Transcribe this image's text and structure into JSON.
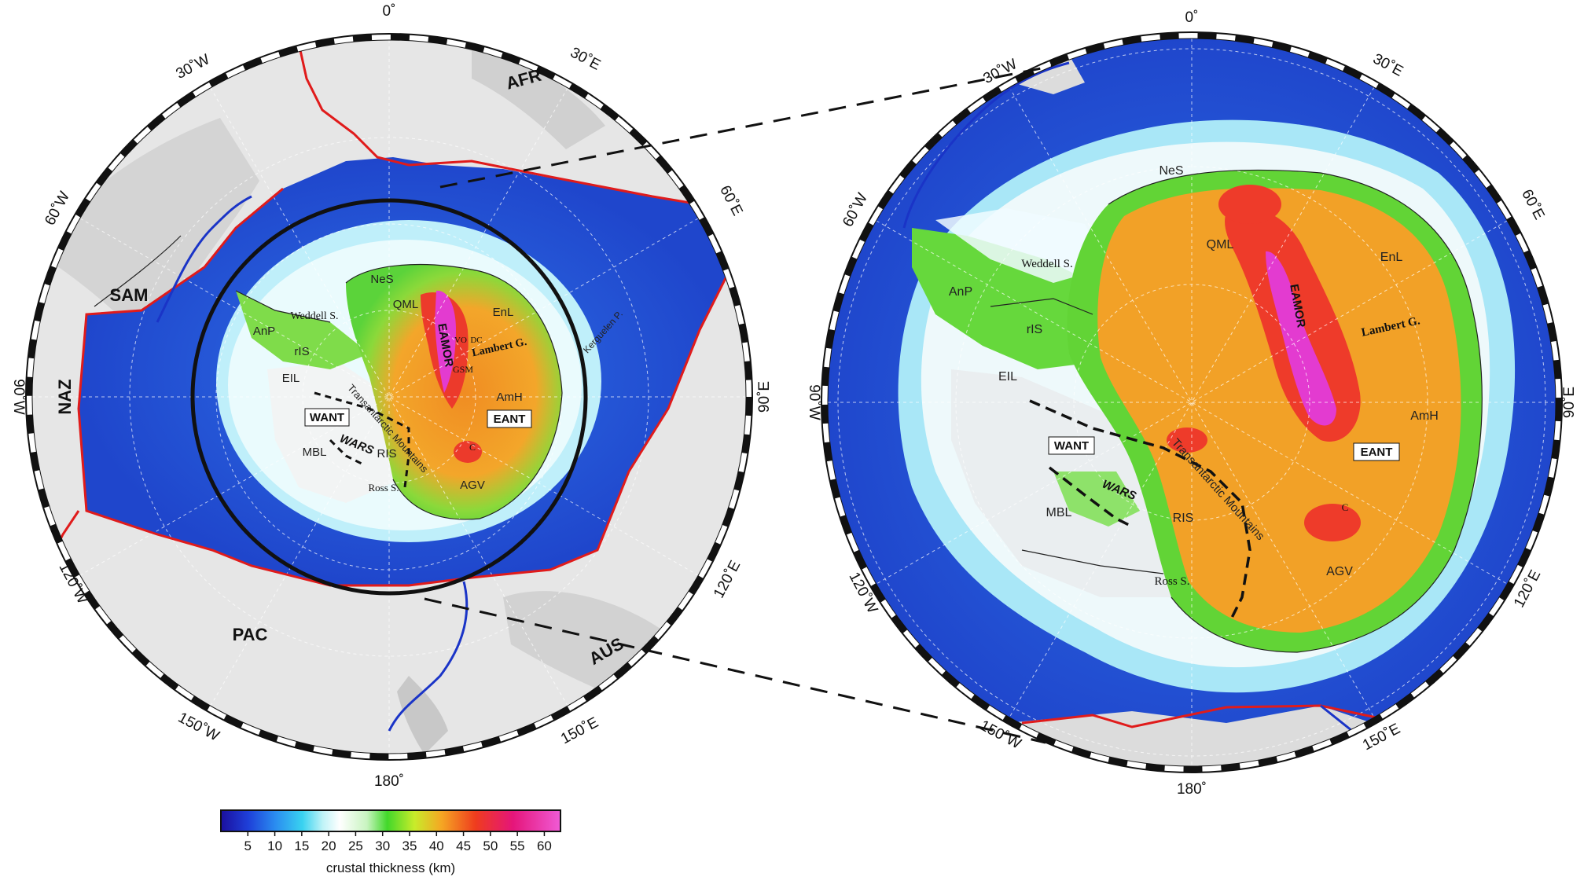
{
  "left_map": {
    "meridians": {
      "top": "0˚",
      "bottom": "180˚",
      "left": "90˚W",
      "right": "90˚E",
      "w30": "30˚W",
      "e30": "30˚E",
      "w60": "60˚W",
      "e60": "60˚E",
      "w120": "120˚W",
      "e120": "120˚E",
      "w150": "150˚W",
      "e150": "150˚E"
    },
    "plates": {
      "afr": "AFR",
      "sam": "SAM",
      "naz": "NAZ",
      "pac": "PAC",
      "aus": "AUS"
    },
    "regions": {
      "nes": "NeS",
      "qml": "QML",
      "enl": "EnL",
      "weddell": "Weddell S.",
      "anp": "AnP",
      "ris_small": "rIS",
      "eil": "EIL",
      "want": "WANT",
      "eant": "EANT",
      "eamor": "EAMOR",
      "lambert": "Lambert G.",
      "amh": "AmH",
      "wars": "WARS",
      "mbl": "MBL",
      "ris": "RIS",
      "ross": "Ross S.",
      "agv": "AGV",
      "transantarctic": "Transantarctic Mountains",
      "kerguelen": "Kerguelen P.",
      "gsm": "GSM",
      "dc": "DC",
      "vo": "VO",
      "c": "C"
    }
  },
  "right_map": {
    "meridians": {
      "top": "0˚",
      "bottom": "180˚",
      "left": "90˚W",
      "right": "90˚E",
      "w30": "30˚W",
      "e30": "30˚E",
      "w60": "60˚W",
      "e60": "60˚E",
      "w120": "120˚W",
      "e120": "120˚E",
      "w150": "150˚W",
      "e150": "150˚E"
    },
    "regions": {
      "nes": "NeS",
      "qml": "QML",
      "enl": "EnL",
      "weddell": "Weddell S.",
      "anp": "AnP",
      "ris_small": "rIS",
      "eil": "EIL",
      "want": "WANT",
      "eant": "EANT",
      "eamor": "EAMOR",
      "lambert": "Lambert G.",
      "amh": "AmH",
      "wars": "WARS",
      "mbl": "MBL",
      "ris": "RIS",
      "ross": "Ross S.",
      "agv": "AGV",
      "transantarctic": "Transantarctic Mountains",
      "c": "C"
    }
  },
  "colorbar": {
    "ticks": [
      "5",
      "10",
      "15",
      "20",
      "25",
      "30",
      "35",
      "40",
      "45",
      "50",
      "55",
      "60"
    ],
    "label": "crustal thickness (km)",
    "range": [
      0,
      63
    ],
    "stops": [
      {
        "value": 0,
        "color": "#1b0f9e"
      },
      {
        "value": 5,
        "color": "#1e3fd8"
      },
      {
        "value": 10,
        "color": "#2a8cf0"
      },
      {
        "value": 15,
        "color": "#39d2f0"
      },
      {
        "value": 19,
        "color": "#bff3f7"
      },
      {
        "value": 22,
        "color": "#ffffff"
      },
      {
        "value": 27,
        "color": "#c8f4c0"
      },
      {
        "value": 31,
        "color": "#42d82a"
      },
      {
        "value": 36,
        "color": "#c8ec2a"
      },
      {
        "value": 41,
        "color": "#f5a623"
      },
      {
        "value": 47,
        "color": "#ef3c1e"
      },
      {
        "value": 54,
        "color": "#e5157a"
      },
      {
        "value": 63,
        "color": "#f05bd6"
      }
    ]
  },
  "colors": {
    "ocean_thin": "#2a5fe0",
    "ocean_edge": "#4fa8f2",
    "shelf": "#dff6fb",
    "green": "#5bd33a",
    "orange": "#f2a127",
    "red": "#ee3b2a",
    "magenta": "#e23bd6",
    "land_gray": "#e4e4e4",
    "plate_boundary": "#e01b1b",
    "blue_boundary": "#1a34c7"
  }
}
